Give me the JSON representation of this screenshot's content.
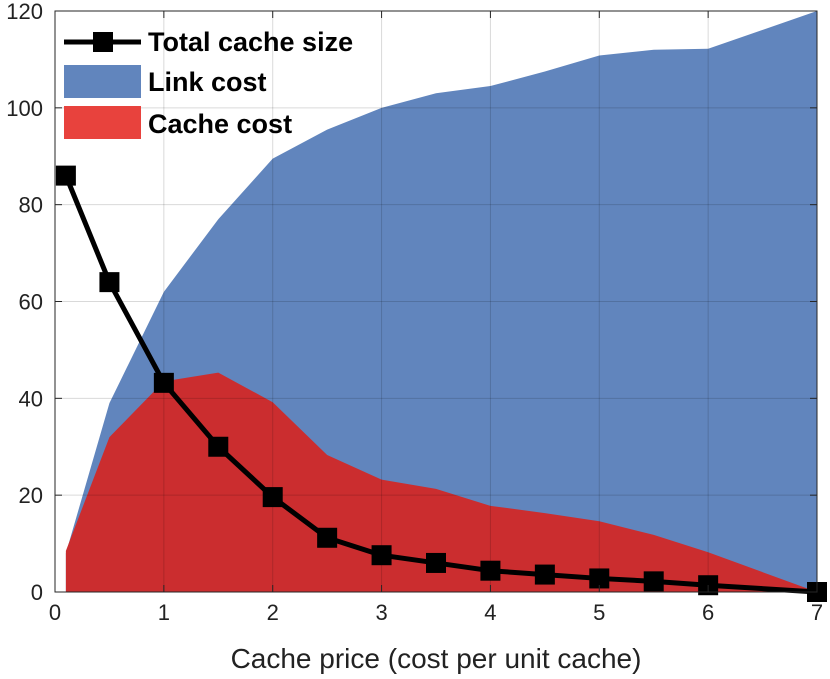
{
  "chart_data": {
    "type": "area",
    "xlabel": "Cache price (cost per unit cache)",
    "ylabel": "",
    "xlim": [
      0,
      7
    ],
    "ylim": [
      0,
      120
    ],
    "xticks": [
      "0",
      "1",
      "2",
      "3",
      "4",
      "5",
      "6",
      "7"
    ],
    "yticks": [
      "0",
      "20",
      "40",
      "60",
      "80",
      "100",
      "120"
    ],
    "grid": true,
    "legend_position": "top-left",
    "x": [
      0.1,
      0.5,
      1.0,
      1.5,
      2.0,
      2.5,
      3.0,
      3.5,
      4.0,
      4.5,
      5.0,
      5.5,
      6.0,
      7.0
    ],
    "series": [
      {
        "name": "Total cache size",
        "kind": "line",
        "marker": "square",
        "color": "#000000",
        "values": [
          86,
          64,
          43.2,
          30,
          19.6,
          11.2,
          7.6,
          6,
          4.4,
          3.6,
          2.8,
          2.2,
          1.4,
          0
        ]
      },
      {
        "name": "Link cost",
        "kind": "stacked-area-total",
        "color": "#6185bd",
        "values": [
          8,
          39,
          62,
          77,
          89.5,
          95.5,
          100,
          103,
          104.5,
          107.5,
          110.8,
          112,
          112.2,
          120
        ]
      },
      {
        "name": "Cache cost",
        "kind": "area",
        "color": "#cb2d2f",
        "legend_color": "#e8423d",
        "values": [
          8.5,
          32,
          43.5,
          45.3,
          39.2,
          28.3,
          23.2,
          21.3,
          17.8,
          16.3,
          14.6,
          11.8,
          8.2,
          0
        ]
      }
    ]
  }
}
